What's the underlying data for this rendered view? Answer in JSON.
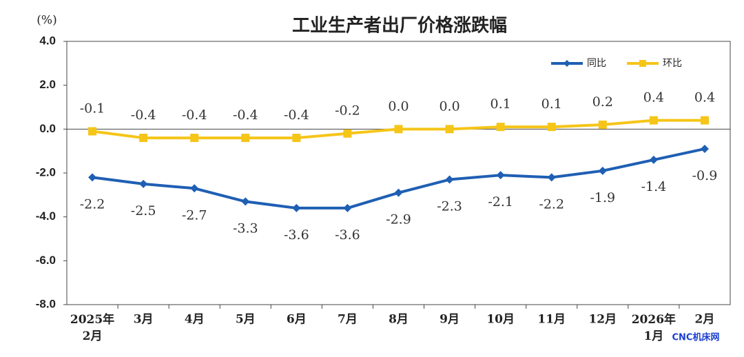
{
  "chart_data": {
    "type": "line",
    "title": "工业生产者出厂价格涨跌幅",
    "y_unit_label": "(%)",
    "categories": [
      "2025年\n2月",
      "3月",
      "4月",
      "5月",
      "6月",
      "7月",
      "8月",
      "9月",
      "10月",
      "11月",
      "12月",
      "2026年\n1月",
      "2月"
    ],
    "series": [
      {
        "name": "同比",
        "color": "#1f5fb4",
        "marker": "diamond",
        "values": [
          -2.2,
          -2.5,
          -2.7,
          -3.3,
          -3.6,
          -3.6,
          -2.9,
          -2.3,
          -2.1,
          -2.2,
          -1.9,
          -1.4,
          -0.9
        ],
        "value_labels": [
          "-2.2",
          "-2.5",
          "-2.7",
          "-3.3",
          "-3.6",
          "-3.6",
          "-2.9",
          "-2.3",
          "-2.1",
          "-2.2",
          "-1.9",
          "-1.4",
          "-0.9"
        ]
      },
      {
        "name": "环比",
        "color": "#f5c518",
        "marker": "square",
        "values": [
          -0.1,
          -0.4,
          -0.4,
          -0.4,
          -0.4,
          -0.2,
          0.0,
          0.0,
          0.1,
          0.1,
          0.2,
          0.4,
          0.4
        ],
        "value_labels": [
          "-0.1",
          "-0.4",
          "-0.4",
          "-0.4",
          "-0.4",
          "-0.2",
          "0.0",
          "0.0",
          "0.1",
          "0.1",
          "0.2",
          "0.4",
          "0.4"
        ]
      }
    ],
    "ylim": [
      -8,
      4
    ],
    "yticks": [
      {
        "value": -8,
        "label": "-8.0"
      },
      {
        "value": -6,
        "label": "-6.0"
      },
      {
        "value": -4,
        "label": "-4.0"
      },
      {
        "value": -2,
        "label": "-2.0"
      },
      {
        "value": 0,
        "label": "0.0"
      },
      {
        "value": 2,
        "label": "2.0"
      },
      {
        "value": 4,
        "label": "4.0"
      }
    ],
    "legend": "top-right",
    "watermark": "CNC机床网"
  }
}
